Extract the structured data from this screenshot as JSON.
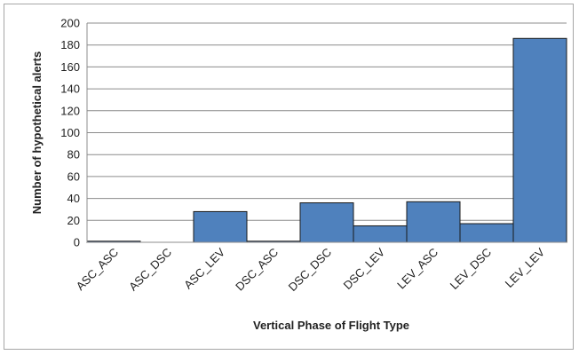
{
  "chart_data": {
    "type": "bar",
    "xlabel": "Vertical Phase of Flight Type",
    "ylabel": "Number of hypothetical alerts",
    "ylim": [
      0,
      200
    ],
    "yticks": [
      0,
      20,
      40,
      60,
      80,
      100,
      120,
      140,
      160,
      180,
      200
    ],
    "grid": true,
    "categories": [
      "ASC_ASC",
      "ASC_DSC",
      "ASC_LEV",
      "DSC_ASC",
      "DSC_DSC",
      "DSC_LEV",
      "LEV_ASC",
      "LEV_DSC",
      "LEV_LEV"
    ],
    "values": [
      1,
      0,
      28,
      1,
      36,
      15,
      37,
      17,
      186
    ],
    "bar_color": "#4f81bd"
  }
}
